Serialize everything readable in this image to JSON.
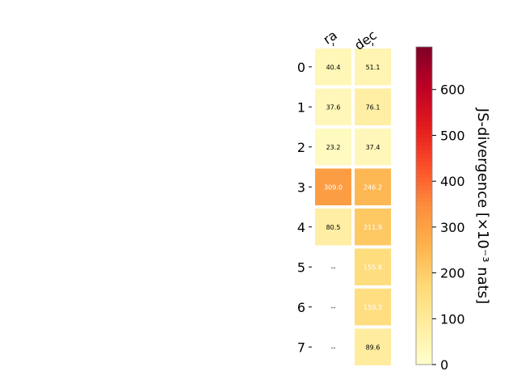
{
  "chart_data": {
    "type": "heatmap",
    "columns": [
      "ra",
      "dec"
    ],
    "rows": [
      "0",
      "1",
      "2",
      "3",
      "4",
      "5",
      "6",
      "7"
    ],
    "values": [
      [
        40.4,
        51.1
      ],
      [
        37.6,
        76.1
      ],
      [
        23.2,
        37.4
      ],
      [
        309.0,
        246.2
      ],
      [
        80.5,
        211.9
      ],
      [
        null,
        155.8
      ],
      [
        null,
        150.3
      ],
      [
        null,
        89.6
      ]
    ],
    "cell_labels": [
      [
        "40.4",
        "51.1"
      ],
      [
        "37.6",
        "76.1"
      ],
      [
        "23.2",
        "37.4"
      ],
      [
        "309.0",
        "246.2"
      ],
      [
        "80.5",
        "211.9"
      ],
      [
        "--",
        "155.8"
      ],
      [
        "--",
        "150.3"
      ],
      [
        "--",
        "89.6"
      ]
    ],
    "colorbar": {
      "label": "JS-divergence [×10⁻³ nats]",
      "colormap": "YlOrRd",
      "range": [
        0,
        693
      ],
      "ticks": [
        0,
        100,
        200,
        300,
        400,
        500,
        600
      ]
    }
  }
}
